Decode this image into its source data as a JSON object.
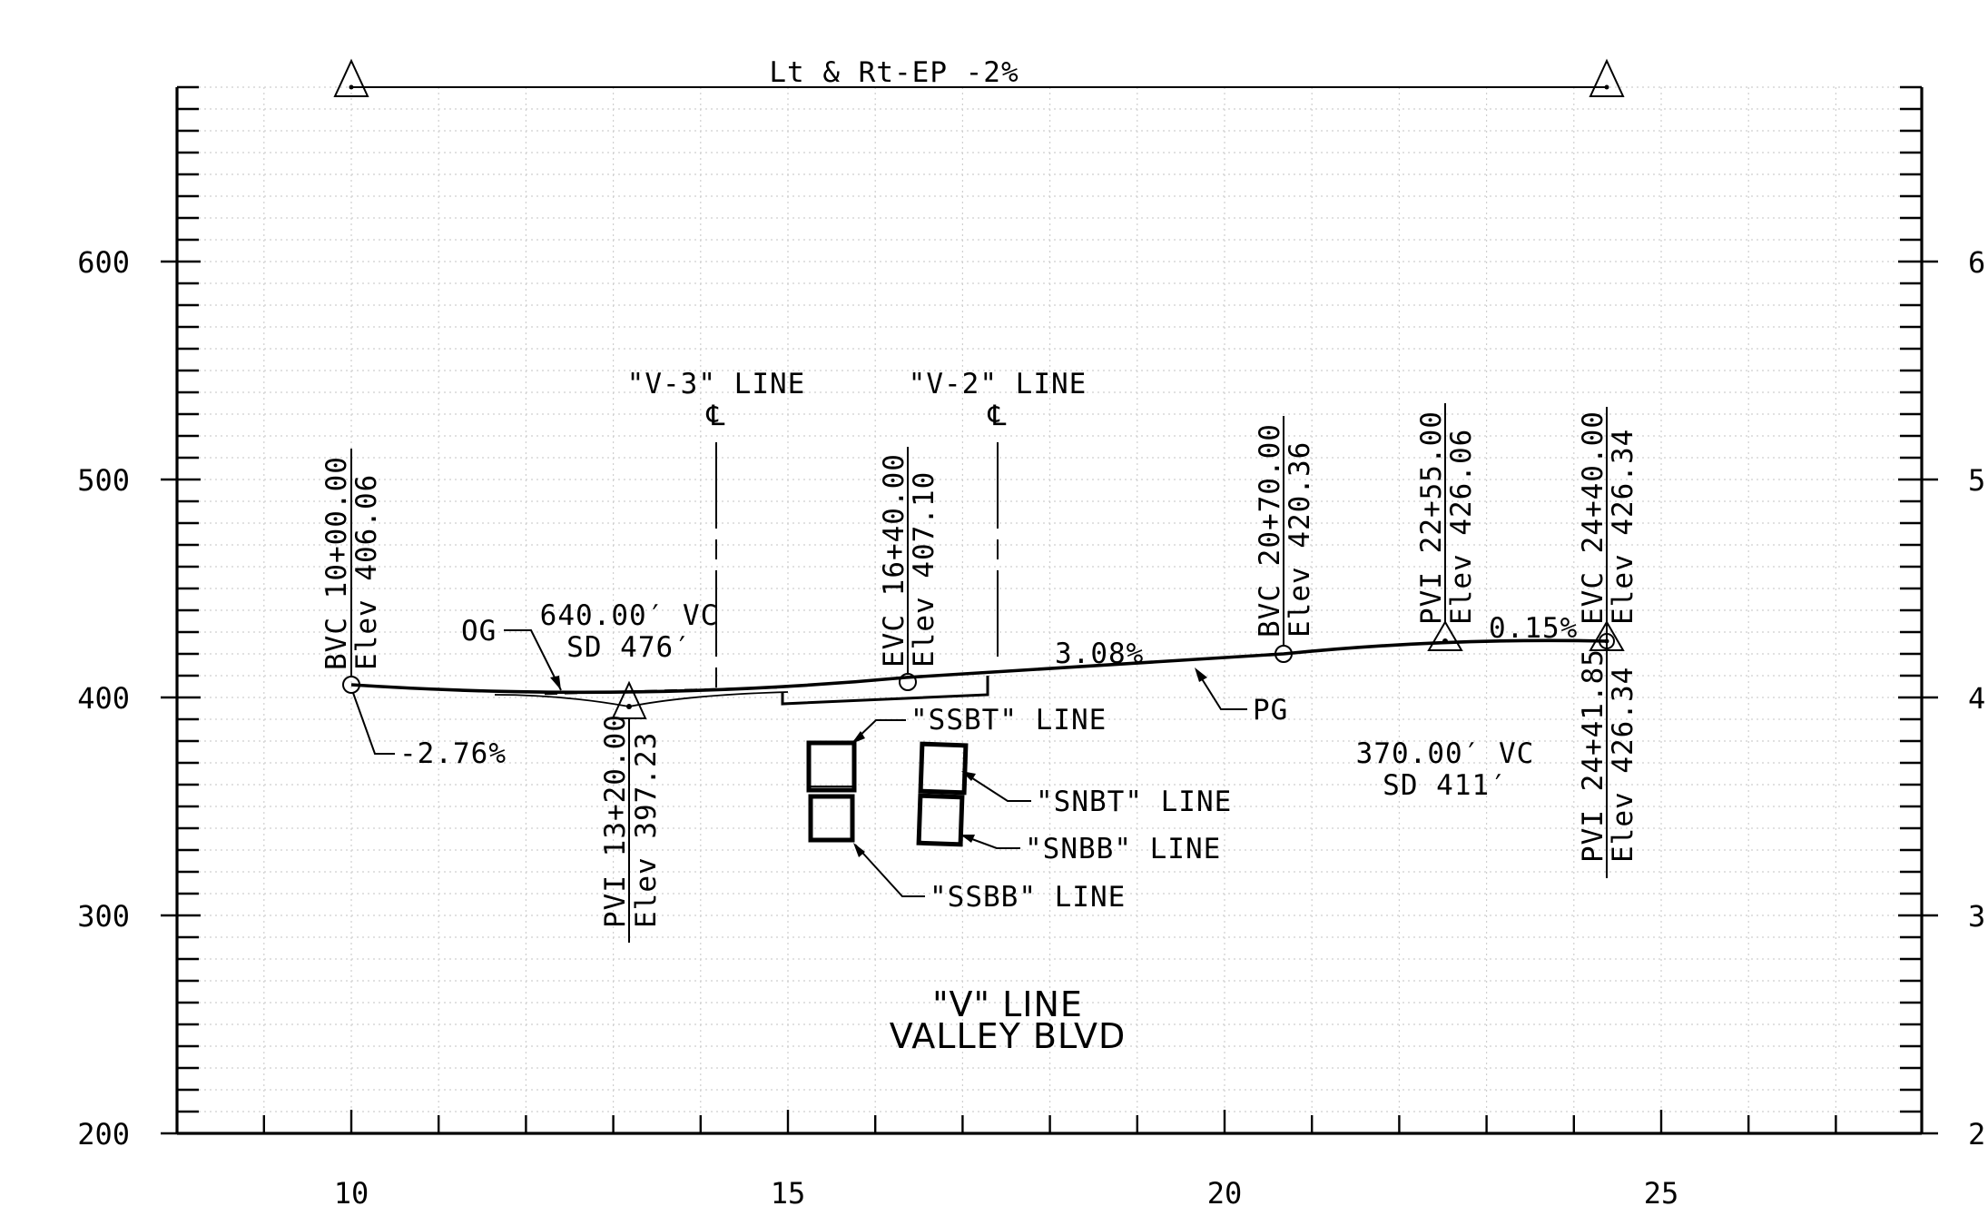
{
  "profile": {
    "top_note": "Lt & Rt-EP -2%",
    "title_line1": "\"V\" LINE",
    "title_line2": "VALLEY BLVD",
    "x_ticks": [
      "10",
      "15",
      "20",
      "25"
    ],
    "y_ticks_left": [
      "600",
      "500",
      "400",
      "300",
      "200"
    ],
    "y_ticks_right": [
      "6",
      "5",
      "4",
      "3",
      "2"
    ]
  },
  "annotations": {
    "v3_line": "\"V-3\" LINE",
    "v3_cl": "℄",
    "v2_line": "\"V-2\" LINE",
    "v2_cl": "℄",
    "bvc1_sta": "BVC 10+00.00",
    "bvc1_elev": "Elev 406.06",
    "grade1": "-2.76%",
    "og": "OG",
    "vc1_len": "640.00′ VC",
    "vc1_sd": "SD 476′",
    "pvi1_sta": "PVI 13+20.00",
    "pvi1_elev": "Elev 397.23",
    "evc1_sta": "EVC 16+40.00",
    "evc1_elev": "Elev 407.10",
    "grade2": "3.08%",
    "pg": "PG",
    "bvc2_sta": "BVC 20+70.00",
    "bvc2_elev": "Elev 420.36",
    "pvi2_sta": "PVI 22+55.00",
    "pvi2_elev": "Elev 426.06",
    "grade3": "0.15%",
    "evc2_sta": "EVC 24+40.00",
    "evc2_elev": "Elev 426.34",
    "pvi3_sta": "PVI 24+41.85",
    "pvi3_elev": "Elev 426.34",
    "vc2_len": "370.00′ VC",
    "vc2_sd": "SD 411′",
    "ssbt": "\"SSBT\" LINE",
    "snbt": "\"SNBT\" LINE",
    "snbb": "\"SNBB\" LINE",
    "ssbb": "\"SSBB\" LINE"
  }
}
